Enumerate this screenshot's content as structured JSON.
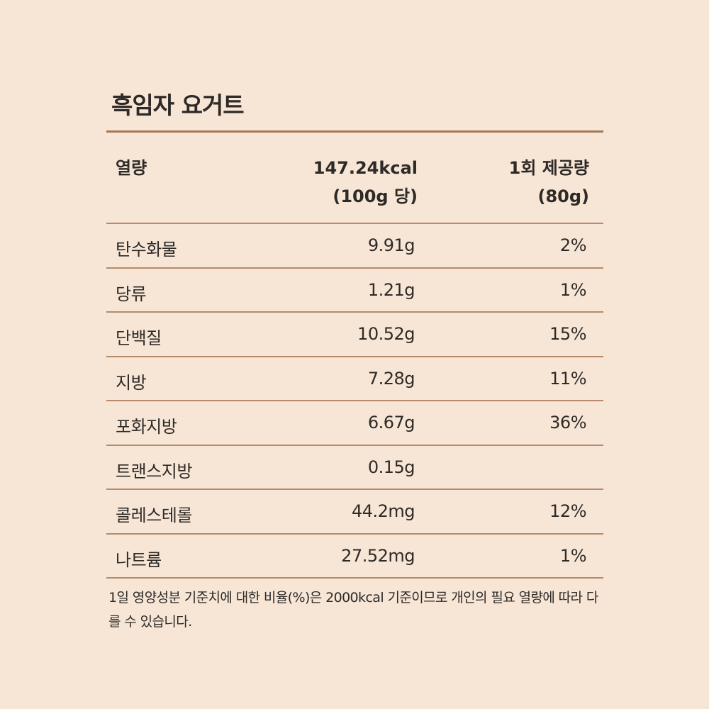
{
  "title": "흑임자 요거트",
  "header": {
    "label": "열량",
    "calories_line1": "147.24kcal",
    "calories_line2": "(100g 당)",
    "serving_line1": "1회 제공량",
    "serving_line2": "(80g)"
  },
  "rows": [
    {
      "name": "탄수화물",
      "amount": "9.91g",
      "percent": "2%"
    },
    {
      "name": "당류",
      "amount": "1.21g",
      "percent": "1%"
    },
    {
      "name": "단백질",
      "amount": "10.52g",
      "percent": "15%"
    },
    {
      "name": "지방",
      "amount": "7.28g",
      "percent": "11%"
    },
    {
      "name": "포화지방",
      "amount": "6.67g",
      "percent": "36%"
    },
    {
      "name": "트랜스지방",
      "amount": "0.15g",
      "percent": ""
    },
    {
      "name": "콜레스테롤",
      "amount": "44.2mg",
      "percent": "12%"
    },
    {
      "name": "나트륨",
      "amount": "27.52mg",
      "percent": "1%"
    }
  ],
  "footnote": "1일 영양성분 기준치에 대한 비율(%)은 2000kcal 기준이므로 개인의 필요 열량에 따라 다를 수 있습니다.",
  "colors": {
    "background": "#f7e6d6",
    "rule": "#a47757",
    "text": "#2e2a27"
  }
}
